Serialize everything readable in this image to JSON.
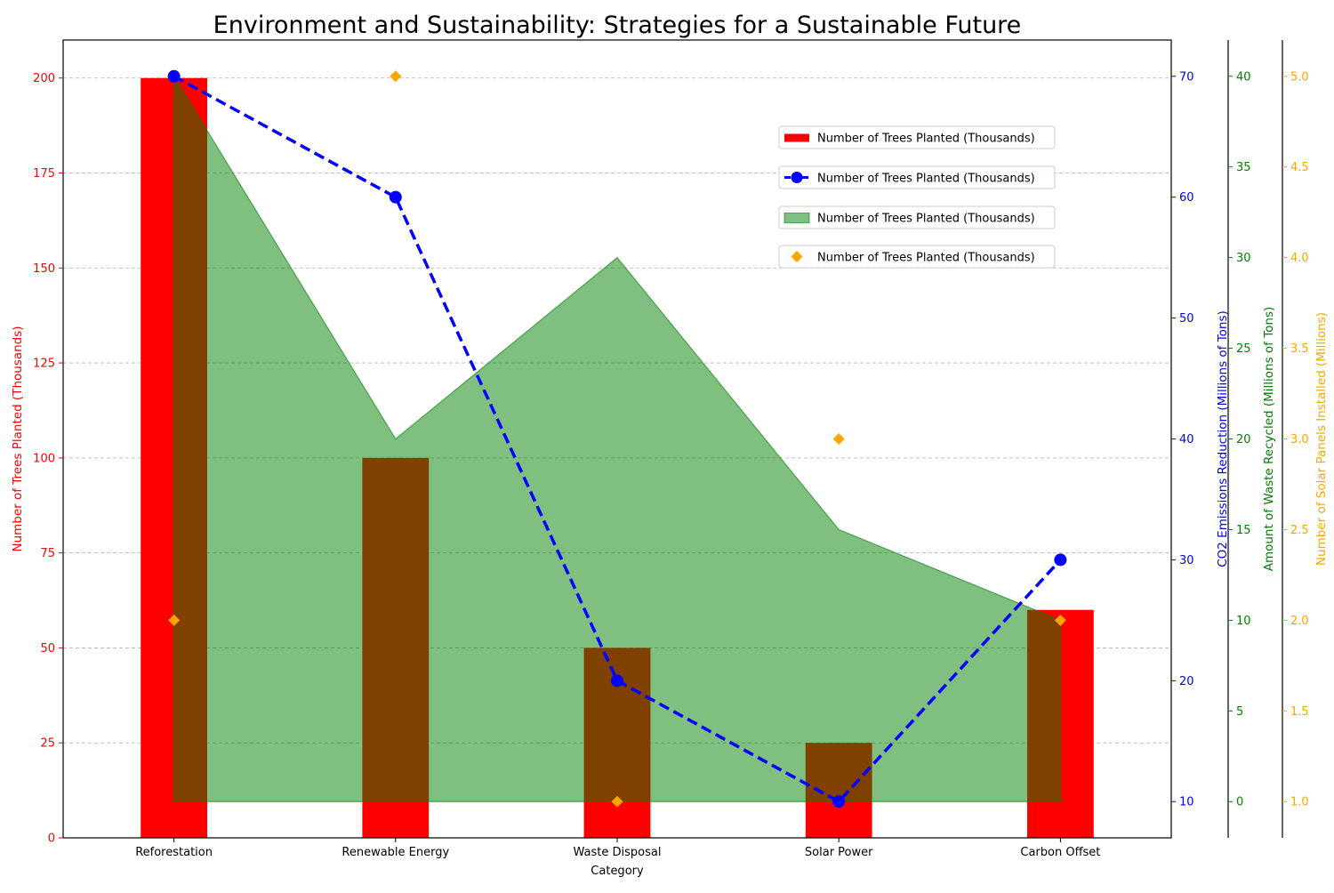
{
  "chart_data": {
    "type": "bar",
    "title": "Environment and Sustainability: Strategies for a Sustainable Future",
    "xlabel": "Category",
    "categories": [
      "Reforestation",
      "Renewable Energy",
      "Waste Disposal",
      "Solar Power",
      "Carbon Offset"
    ],
    "grid": true,
    "legend_placement": "upper-right",
    "legend_labels": [
      "Number of Trees Planted (Thousands)",
      "Number of Trees Planted (Thousands)",
      "Number of Trees Planted (Thousands)",
      "Number of Trees Planted (Thousands)"
    ],
    "axes": [
      {
        "id": "trees",
        "label": "Number of Trees Planted (Thousands)",
        "color": "#ff0000",
        "range": [
          0,
          210
        ],
        "ticks": [
          0,
          25,
          50,
          75,
          100,
          125,
          150,
          175,
          200
        ]
      },
      {
        "id": "co2",
        "label": "CO2 Emissions Reduction (Millions of Tons)",
        "color": "#0000ff",
        "range": [
          7,
          73
        ],
        "ticks": [
          10,
          20,
          30,
          40,
          50,
          60,
          70
        ]
      },
      {
        "id": "waste",
        "label": "Amount of Waste Recycled (Millions of Tons)",
        "color": "#008000",
        "range": [
          -2,
          42
        ],
        "ticks": [
          0,
          5,
          10,
          15,
          20,
          25,
          30,
          35,
          40
        ]
      },
      {
        "id": "solar",
        "label": "Number of Solar Panels Installed (Millions)",
        "color": "#ffa500",
        "range": [
          0.8,
          5.2
        ],
        "ticks": [
          "1.0",
          "1.5",
          "2.0",
          "2.5",
          "3.0",
          "3.5",
          "4.0",
          "4.5",
          "5.0"
        ]
      }
    ],
    "series": [
      {
        "type": "bar",
        "axis": "trees",
        "color": "#ff0000",
        "values": [
          200,
          100,
          50,
          25,
          60
        ]
      },
      {
        "type": "line",
        "axis": "co2",
        "color": "#0000ff",
        "style": "dashed",
        "marker": "circle",
        "values": [
          70,
          60,
          20,
          10,
          30
        ]
      },
      {
        "type": "area",
        "axis": "waste",
        "color": "#008000",
        "opacity": 0.5,
        "values": [
          40,
          20,
          30,
          15,
          10
        ]
      },
      {
        "type": "scatter",
        "axis": "solar",
        "color": "#ffa500",
        "marker": "diamond",
        "values": [
          2,
          5,
          1,
          3,
          2
        ]
      }
    ]
  }
}
